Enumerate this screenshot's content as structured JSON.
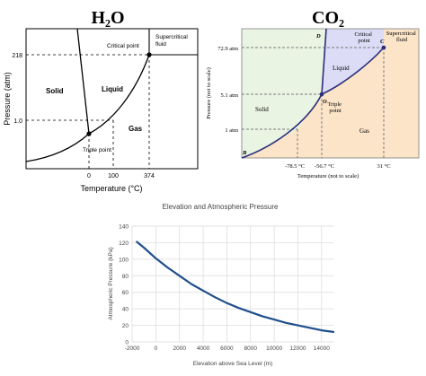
{
  "h2o": {
    "title": "H₂O",
    "ylabel": "Pressure (atm)",
    "xlabel": "Temperature (°C)",
    "regions": {
      "solid": "Solid",
      "liquid": "Liquid",
      "gas": "Gas",
      "supercritical": "Supercritical\nfluid"
    },
    "critical_point_label": "Critical point",
    "triple_point_label": "Triple point",
    "y_ticks": [
      "218",
      "1.0"
    ],
    "x_ticks": [
      "0",
      "100",
      "374"
    ]
  },
  "co2": {
    "title": "CO₂",
    "ylabel": "Pressure (not to scale)",
    "xlabel": "Temperature (not to scale)",
    "regions": {
      "solid": "Solid",
      "liquid": "Liquid",
      "gas": "Gas",
      "supercritical": "Supercritical\nfluid"
    },
    "critical_point_label": "Critical\npoint",
    "triple_point_label": "Triple\npoint",
    "point_letters": {
      "b": "B",
      "c": "C",
      "d": "D",
      "o": "O"
    },
    "y_ticks": [
      "72.9 atm",
      "5.1 atm",
      "1 atm"
    ],
    "x_ticks": [
      "-78.5 °C",
      "-56.7 °C",
      "31 °C"
    ],
    "colors": {
      "solid": "#e9f4e3",
      "liquid": "#dcdcf6",
      "gas": "#fbe4c8",
      "supercritical": "#fbe4c8",
      "line": "#2a2e7a"
    }
  },
  "chart_data": {
    "type": "line",
    "title": "Elevation and Atmospheric Pressure",
    "xlabel": "Elevation above Sea Level (m)",
    "ylabel": "Atmospheric Pressure (kPa)",
    "xlim": [
      -2000,
      15000
    ],
    "ylim": [
      0,
      140
    ],
    "x_ticks": [
      -2000,
      0,
      2000,
      4000,
      6000,
      8000,
      10000,
      12000,
      14000
    ],
    "y_ticks": [
      0,
      20,
      40,
      60,
      80,
      100,
      120,
      140
    ],
    "grid": true,
    "series": [
      {
        "color": "#1f4e8c",
        "x": [
          -1600,
          -1000,
          0,
          1000,
          2000,
          3000,
          4000,
          5000,
          6000,
          7000,
          8000,
          9000,
          10000,
          11000,
          12000,
          13000,
          14000,
          15000
        ],
        "y": [
          121,
          114,
          101,
          90,
          80,
          70,
          62,
          54,
          47,
          41,
          36,
          31,
          27,
          23,
          20,
          17,
          14,
          12
        ]
      }
    ]
  }
}
